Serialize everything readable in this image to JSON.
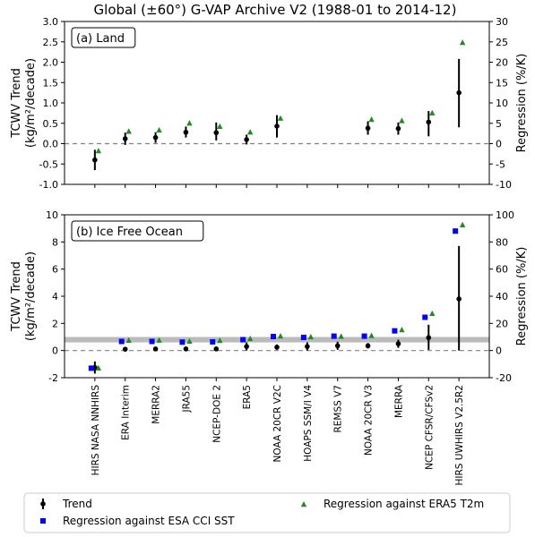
{
  "figure": {
    "title": "Global (±60°) G-VAP Archive V2 (1988-01 to 2014-12)"
  },
  "categories": [
    "HIRS NASA NNHIRS",
    "ERA Interim",
    "MERRA2",
    "JRA55",
    "NCEP-DOE 2",
    "ERA5",
    "NOAA 20CR V2C",
    "HOAPS SSM/I V4",
    "REMSS V7",
    "NOAA 20CR V3",
    "MERRA",
    "NCEP CFSR/CFSv2",
    "HIRS UWHIRS V2.5R2"
  ],
  "legend": {
    "placement": "bottom",
    "trend": "Trend",
    "sst": "Regression against ESA CCI SST",
    "t2m": "Regression against ERA5 T2m"
  },
  "colors": {
    "trend": "#000000",
    "sst": "#0000ff",
    "t2m": "#228b22",
    "zero_line": "#808080",
    "band": "#bbbbbb"
  },
  "chart_data": [
    {
      "type": "scatter",
      "panel_label": "(a) Land",
      "ylabel": "TCWV Trend",
      "ylabel_unit": "(kg/m²/decade)",
      "y2label": "Regression (%/K)",
      "ylim": [
        -1.0,
        3.0
      ],
      "y2lim": [
        -10,
        30
      ],
      "yticks": [
        "-1.0",
        "-0.5",
        "0.0",
        "0.5",
        "1.0",
        "1.5",
        "2.0",
        "2.5",
        "3.0"
      ],
      "y2ticks": [
        "-10",
        "-5",
        "0",
        "5",
        "10",
        "15",
        "20",
        "25",
        "30"
      ],
      "zero_line": 0,
      "series": [
        {
          "name": "Trend",
          "values": [
            -0.4,
            0.12,
            0.15,
            0.28,
            0.27,
            0.1,
            0.43,
            null,
            null,
            0.38,
            0.37,
            0.53,
            1.25
          ],
          "err_low": [
            -0.65,
            -0.03,
            0.02,
            0.15,
            0.08,
            -0.02,
            0.15,
            null,
            null,
            0.22,
            0.22,
            0.18,
            0.4
          ],
          "err_high": [
            -0.15,
            0.27,
            0.28,
            0.42,
            0.52,
            0.22,
            0.7,
            null,
            null,
            0.55,
            0.52,
            0.8,
            2.08
          ]
        },
        {
          "name": "Regression against ERA5 T2m",
          "values": [
            -1.8,
            3.0,
            3.3,
            5.0,
            4.2,
            2.8,
            6.2,
            null,
            null,
            5.9,
            5.6,
            7.5,
            24.8
          ]
        }
      ]
    },
    {
      "type": "scatter",
      "panel_label": "(b) Ice Free Ocean",
      "ylabel": "TCWV Trend",
      "ylabel_unit": "(kg/m²/decade)",
      "y2label": "Regression (%/K)",
      "ylim": [
        -2,
        10
      ],
      "y2lim": [
        -20,
        100
      ],
      "yticks": [
        "-2",
        "0",
        "2",
        "4",
        "6",
        "8",
        "10"
      ],
      "y2ticks": [
        "-20",
        "0",
        "20",
        "40",
        "60",
        "80",
        "100"
      ],
      "zero_line": 0,
      "band": [
        0.6,
        1.0
      ],
      "series": [
        {
          "name": "Trend",
          "values": [
            -1.25,
            0.1,
            0.12,
            0.12,
            0.12,
            0.3,
            0.25,
            0.3,
            0.35,
            0.35,
            0.5,
            0.95,
            3.8
          ],
          "err_low": [
            -1.7,
            0.03,
            0.05,
            0.05,
            0.05,
            0.0,
            0.05,
            0.0,
            0.05,
            0.15,
            0.2,
            0.05,
            0.0
          ],
          "err_high": [
            -0.8,
            0.18,
            0.2,
            0.2,
            0.2,
            0.6,
            0.45,
            0.6,
            0.65,
            0.55,
            0.8,
            1.9,
            7.7
          ]
        },
        {
          "name": "Regression against ESA CCI SST",
          "values": [
            -13,
            6.7,
            6.7,
            6.2,
            6.4,
            8.0,
            10.3,
            9.7,
            10.6,
            10.6,
            14.5,
            24.5,
            88
          ]
        },
        {
          "name": "Regression against ERA5 T2m",
          "values": [
            -13,
            7.4,
            7.5,
            6.8,
            7.3,
            8.7,
            10.6,
            10.0,
            10.3,
            10.9,
            15.2,
            27.2,
            92.5
          ]
        }
      ]
    }
  ]
}
